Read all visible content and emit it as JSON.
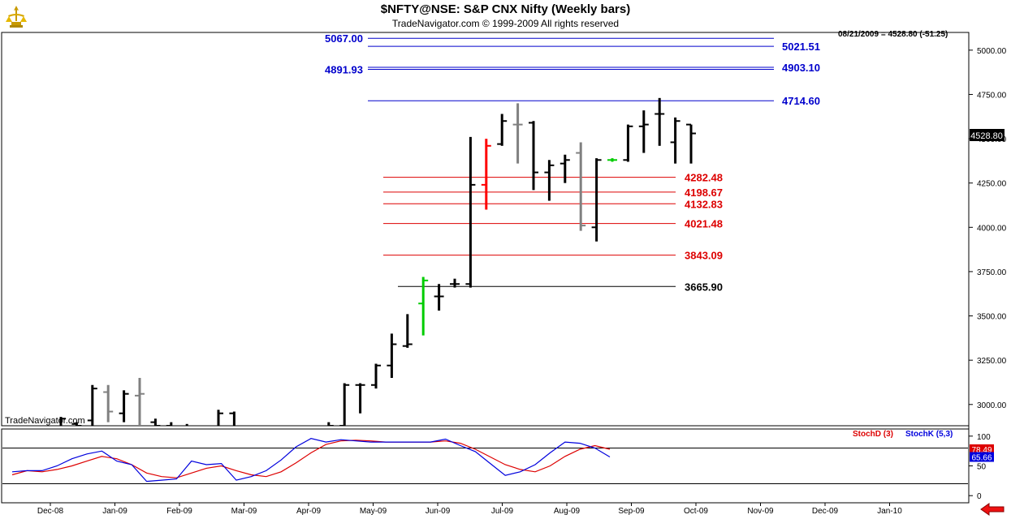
{
  "header": {
    "title": "$NFTY@NSE:  S&P CNX Nifty  (Weekly bars)",
    "copyright": "TradeNavigator.com © 1999-2009 All rights reserved",
    "last_quote": "08/21/2009 = 4528.80 (-51.25)",
    "watermark": "TradeNavigator.com"
  },
  "colors": {
    "up_bar": "#000000",
    "down_bar": "#808080",
    "highlight_up": "#00cc00",
    "highlight_down": "#ff0000",
    "resistance": "#0000cc",
    "support": "#dd0000",
    "base": "#000000",
    "stoch_d": "#dd0000",
    "stoch_k": "#0000dd"
  },
  "chart_data": [
    {
      "type": "ohlc",
      "ylim": [
        2880,
        5100
      ],
      "yticks": [
        3000,
        3250,
        3500,
        3750,
        4000,
        4250,
        4500,
        4750,
        5000
      ],
      "ytick_labels": [
        "3000.00",
        "3250.00",
        "3500.00",
        "3750.00",
        "4000.00",
        "4250.00",
        "4500.00",
        "4750.00",
        "5000.00"
      ],
      "last_price_label": "4528.80",
      "grid": false,
      "bars": [
        {
          "o": 2870,
          "h": 2930,
          "l": 2850,
          "c": 2920,
          "color": "up"
        },
        {
          "o": 2890,
          "h": 2900,
          "l": 2850,
          "c": 2880,
          "color": "up"
        },
        {
          "o": 2910,
          "h": 3110,
          "l": 2880,
          "c": 3090,
          "color": "up"
        },
        {
          "o": 3070,
          "h": 3110,
          "l": 2900,
          "c": 2960,
          "color": "down"
        },
        {
          "o": 2950,
          "h": 3080,
          "l": 2900,
          "c": 3060,
          "color": "up"
        },
        {
          "o": 3050,
          "h": 3150,
          "l": 2880,
          "c": 3060,
          "color": "down"
        },
        {
          "o": 2900,
          "h": 2920,
          "l": 2850,
          "c": 2880,
          "color": "up"
        },
        {
          "o": 2880,
          "h": 2900,
          "l": 2850,
          "c": 2870,
          "color": "up"
        },
        {
          "o": 2870,
          "h": 2890,
          "l": 2840,
          "c": 2860,
          "color": "up"
        },
        {
          "o": 2860,
          "h": 2880,
          "l": 2830,
          "c": 2850,
          "color": "up"
        },
        {
          "o": 2860,
          "h": 2970,
          "l": 2840,
          "c": 2950,
          "color": "up"
        },
        {
          "o": 2950,
          "h": 2960,
          "l": 2850,
          "c": 2870,
          "color": "up"
        },
        {
          "o": 2860,
          "h": 2880,
          "l": 2820,
          "c": 2840,
          "color": "up"
        },
        {
          "o": 2840,
          "h": 2870,
          "l": 2810,
          "c": 2830,
          "color": "up"
        },
        {
          "o": 2830,
          "h": 2860,
          "l": 2800,
          "c": 2820,
          "color": "up"
        },
        {
          "o": 2820,
          "h": 2850,
          "l": 2790,
          "c": 2810,
          "color": "up"
        },
        {
          "o": 2810,
          "h": 2850,
          "l": 2800,
          "c": 2840,
          "color": "up"
        },
        {
          "o": 2840,
          "h": 2900,
          "l": 2800,
          "c": 2880,
          "color": "up"
        },
        {
          "o": 2880,
          "h": 3120,
          "l": 2860,
          "c": 3110,
          "color": "up"
        },
        {
          "o": 3110,
          "h": 3120,
          "l": 2950,
          "c": 3110,
          "color": "up"
        },
        {
          "o": 3110,
          "h": 3230,
          "l": 3090,
          "c": 3220,
          "color": "up"
        },
        {
          "o": 3220,
          "h": 3400,
          "l": 3150,
          "c": 3340,
          "color": "up"
        },
        {
          "o": 3330,
          "h": 3510,
          "l": 3320,
          "c": 3340,
          "color": "up"
        },
        {
          "o": 3570,
          "h": 3720,
          "l": 3390,
          "c": 3700,
          "color": "up",
          "highlight": "up"
        },
        {
          "o": 3610,
          "h": 3680,
          "l": 3530,
          "c": 3610,
          "color": "up"
        },
        {
          "o": 3680,
          "h": 3710,
          "l": 3660,
          "c": 3680,
          "color": "up"
        },
        {
          "o": 3680,
          "h": 4510,
          "l": 3660,
          "c": 4240,
          "color": "up"
        },
        {
          "o": 4240,
          "h": 4500,
          "l": 4100,
          "c": 4460,
          "color": "down",
          "highlight": "down"
        },
        {
          "o": 4470,
          "h": 4640,
          "l": 4460,
          "c": 4600,
          "color": "up"
        },
        {
          "o": 4580,
          "h": 4700,
          "l": 4360,
          "c": 4580,
          "color": "down"
        },
        {
          "o": 4590,
          "h": 4600,
          "l": 4210,
          "c": 4310,
          "color": "up"
        },
        {
          "o": 4310,
          "h": 4380,
          "l": 4150,
          "c": 4350,
          "color": "up"
        },
        {
          "o": 4360,
          "h": 4410,
          "l": 4250,
          "c": 4380,
          "color": "up"
        },
        {
          "o": 4420,
          "h": 4480,
          "l": 3980,
          "c": 4010,
          "color": "down"
        },
        {
          "o": 4000,
          "h": 4390,
          "l": 3920,
          "c": 4380,
          "color": "up"
        },
        {
          "o": 4380,
          "h": 4390,
          "l": 4370,
          "c": 4380,
          "color": "up",
          "highlight": "up"
        },
        {
          "o": 4380,
          "h": 4580,
          "l": 4370,
          "c": 4570,
          "color": "up"
        },
        {
          "o": 4570,
          "h": 4660,
          "l": 4420,
          "c": 4580,
          "color": "up"
        },
        {
          "o": 4640,
          "h": 4730,
          "l": 4460,
          "c": 4640,
          "color": "up"
        },
        {
          "o": 4480,
          "h": 4620,
          "l": 4360,
          "c": 4600,
          "color": "up"
        },
        {
          "o": 4580,
          "h": 4580,
          "l": 4360,
          "c": 4530,
          "color": "up"
        }
      ],
      "levels": [
        {
          "value": 5067.0,
          "label": "5067.00",
          "side": "left",
          "kind": "resistance"
        },
        {
          "value": 5021.51,
          "label": "5021.51",
          "side": "right",
          "kind": "resistance"
        },
        {
          "value": 4903.1,
          "label": "4903.10",
          "side": "right",
          "kind": "resistance"
        },
        {
          "value": 4891.93,
          "label": "4891.93",
          "side": "left",
          "kind": "resistance"
        },
        {
          "value": 4714.6,
          "label": "4714.60",
          "side": "right",
          "kind": "resistance"
        },
        {
          "value": 4282.48,
          "label": "4282.48",
          "side": "right",
          "kind": "support"
        },
        {
          "value": 4198.67,
          "label": "4198.67",
          "side": "right",
          "kind": "support"
        },
        {
          "value": 4132.83,
          "label": "4132.83",
          "side": "right",
          "kind": "support"
        },
        {
          "value": 4021.48,
          "label": "4021.48",
          "side": "right",
          "kind": "support"
        },
        {
          "value": 3843.09,
          "label": "3843.09",
          "side": "right",
          "kind": "support"
        },
        {
          "value": 3665.9,
          "label": "3665.90",
          "side": "right",
          "kind": "base"
        }
      ]
    },
    {
      "type": "line",
      "ylim": [
        -12,
        112
      ],
      "yticks": [
        0,
        50,
        100
      ],
      "ytick_labels": [
        "0",
        "50",
        "100"
      ],
      "reference_lines": [
        80,
        20
      ],
      "legend": [
        "StochD (3)",
        "StochK (5,3)"
      ],
      "series": [
        {
          "name": "StochD (3)",
          "value_label": "78.49",
          "values": [
            35,
            42,
            40,
            44,
            50,
            58,
            66,
            62,
            52,
            38,
            32,
            30,
            38,
            46,
            50,
            42,
            35,
            32,
            40,
            55,
            72,
            86,
            92,
            93,
            92,
            90,
            90,
            90,
            90,
            92,
            88,
            78,
            65,
            52,
            44,
            40,
            50,
            66,
            78,
            84,
            78
          ]
        },
        {
          "name": "StochK (5,3)",
          "value_label": "65.66",
          "values": [
            40,
            42,
            42,
            50,
            62,
            70,
            75,
            58,
            52,
            24,
            26,
            28,
            58,
            52,
            54,
            26,
            32,
            42,
            60,
            82,
            96,
            90,
            94,
            92,
            90,
            90,
            90,
            90,
            90,
            95,
            84,
            74,
            54,
            34,
            40,
            52,
            72,
            90,
            88,
            80,
            65
          ]
        }
      ]
    }
  ],
  "time_axis": {
    "labels": [
      "Dec-08",
      "Jan-09",
      "Feb-09",
      "Mar-09",
      "Apr-09",
      "May-09",
      "Jun-09",
      "Jul-09",
      "Aug-09",
      "Sep-09",
      "Oct-09",
      "Nov-09",
      "Dec-09",
      "Jan-10"
    ]
  }
}
